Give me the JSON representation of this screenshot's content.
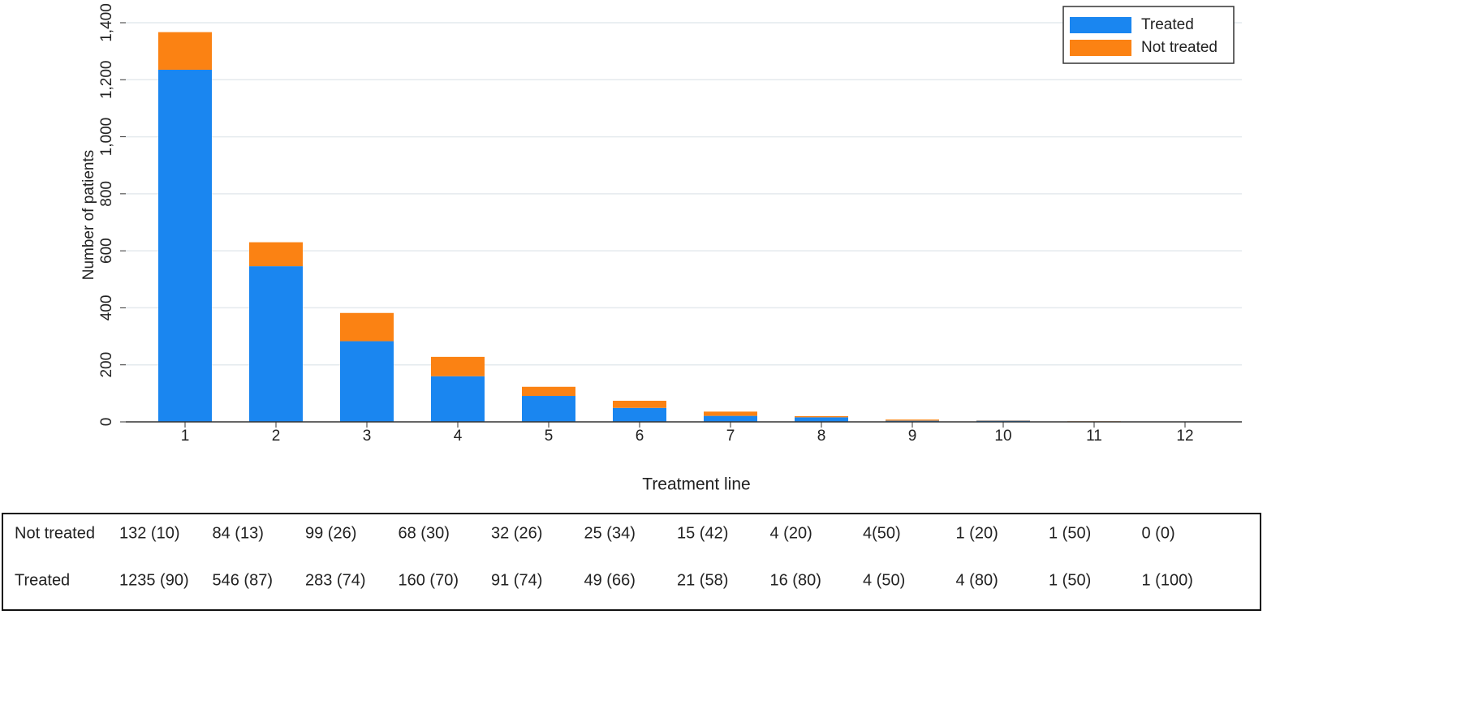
{
  "chart_data": {
    "type": "stacked_bar",
    "x_label": "Treatment line",
    "y_label": "Number of patients",
    "categories": [
      "1",
      "2",
      "3",
      "4",
      "5",
      "6",
      "7",
      "8",
      "9",
      "10",
      "11",
      "12"
    ],
    "series": [
      {
        "name": "Treated",
        "color": "#1a86f0",
        "values": [
          1235,
          546,
          283,
          160,
          91,
          49,
          21,
          16,
          4,
          4,
          1,
          1
        ]
      },
      {
        "name": "Not treated",
        "color": "#fb8213",
        "values": [
          132,
          84,
          99,
          68,
          32,
          25,
          15,
          4,
          4,
          1,
          1,
          0
        ]
      }
    ],
    "ylim": [
      0,
      1400
    ],
    "yticks": [
      0,
      200,
      400,
      600,
      800,
      {
        "value": 1000,
        "label": "1,000"
      },
      {
        "value": 1200,
        "label": "1,200"
      },
      {
        "value": 1400,
        "label": "1,400"
      }
    ],
    "grid": true,
    "legend": "top-right"
  },
  "table": {
    "rows": [
      {
        "label": "Not treated",
        "cells": [
          "132 (10)",
          "84 (13)",
          "99 (26)",
          "68 (30)",
          "32 (26)",
          "25 (34)",
          "15 (42)",
          "4 (20)",
          "4(50)",
          "1 (20)",
          "1 (50)",
          "0 (0)"
        ]
      },
      {
        "label": "Treated",
        "cells": [
          "1235 (90)",
          "546 (87)",
          "283 (74)",
          "160 (70)",
          "91 (74)",
          "49 (66)",
          "21 (58)",
          "16 (80)",
          "4 (50)",
          "4 (80)",
          "1 (50)",
          "1 (100)"
        ]
      }
    ]
  }
}
